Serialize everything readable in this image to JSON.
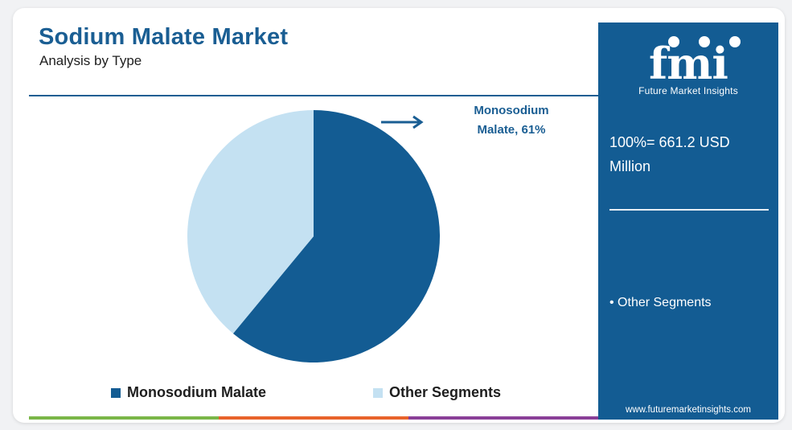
{
  "header": {
    "title": "Sodium Malate Market",
    "subtitle": "Analysis by Type"
  },
  "chart_data": {
    "type": "pie",
    "title": "Sodium Malate Market",
    "subtitle": "Analysis by Type",
    "categories": [
      "Monosodium Malate",
      "Other Segments"
    ],
    "values": [
      61,
      39
    ],
    "unit": "%",
    "colors": [
      "#135c93",
      "#c4e1f2"
    ],
    "annotations": [
      {
        "text_line1": "Monosodium",
        "text_line2": "Malate, 61%",
        "target": "Monosodium Malate"
      }
    ],
    "legend_position": "bottom"
  },
  "legend": [
    {
      "label": "Monosodium Malate",
      "color": "#135c93"
    },
    {
      "label": "Other Segments",
      "color": "#c4e1f2"
    }
  ],
  "sidebar": {
    "logo_text": "fmi",
    "logo_tagline": "Future Market Insights",
    "total_line1": "100%= 661.2 USD",
    "total_line2": "Million",
    "other_note": "• Other Segments",
    "website": "www.futuremarketinsights.com"
  },
  "bottom_bar_colors": [
    "#7ab648",
    "#e8632b",
    "#8a3f98"
  ],
  "colors": {
    "brand": "#1a5e93",
    "sidebar_bg": "#135c93"
  }
}
